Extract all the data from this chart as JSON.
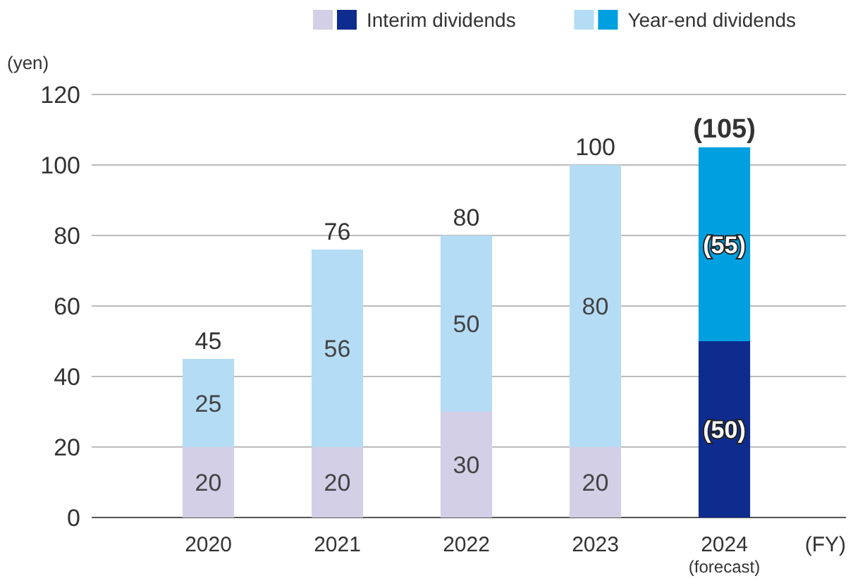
{
  "chart_data": {
    "type": "bar",
    "stacked": true,
    "ylabel": "(yen)",
    "xlabel": "(FY)",
    "categories": [
      "2020",
      "2021",
      "2022",
      "2023",
      "2024\n(forecast)"
    ],
    "series": [
      {
        "name": "Interim dividends",
        "colors": [
          "#d3cfe6",
          "#d3cfe6",
          "#d3cfe6",
          "#d3cfe6",
          "#0e2c8e"
        ],
        "values": [
          20,
          20,
          30,
          20,
          50
        ],
        "value_labels": [
          "20",
          "20",
          "30",
          "20",
          "(50)"
        ]
      },
      {
        "name": "Year-end dividends",
        "colors": [
          "#b5dcf5",
          "#b5dcf5",
          "#b5dcf5",
          "#b5dcf5",
          "#00a0e0"
        ],
        "values": [
          25,
          56,
          50,
          80,
          55
        ],
        "value_labels": [
          "25",
          "56",
          "50",
          "80",
          "(55)"
        ]
      }
    ],
    "totals": [
      "45",
      "76",
      "80",
      "100",
      "(105)"
    ],
    "ylim": [
      0,
      120
    ],
    "yticks": [
      0,
      20,
      40,
      60,
      80,
      100,
      120
    ],
    "grid": "y",
    "legend": "top right"
  }
}
